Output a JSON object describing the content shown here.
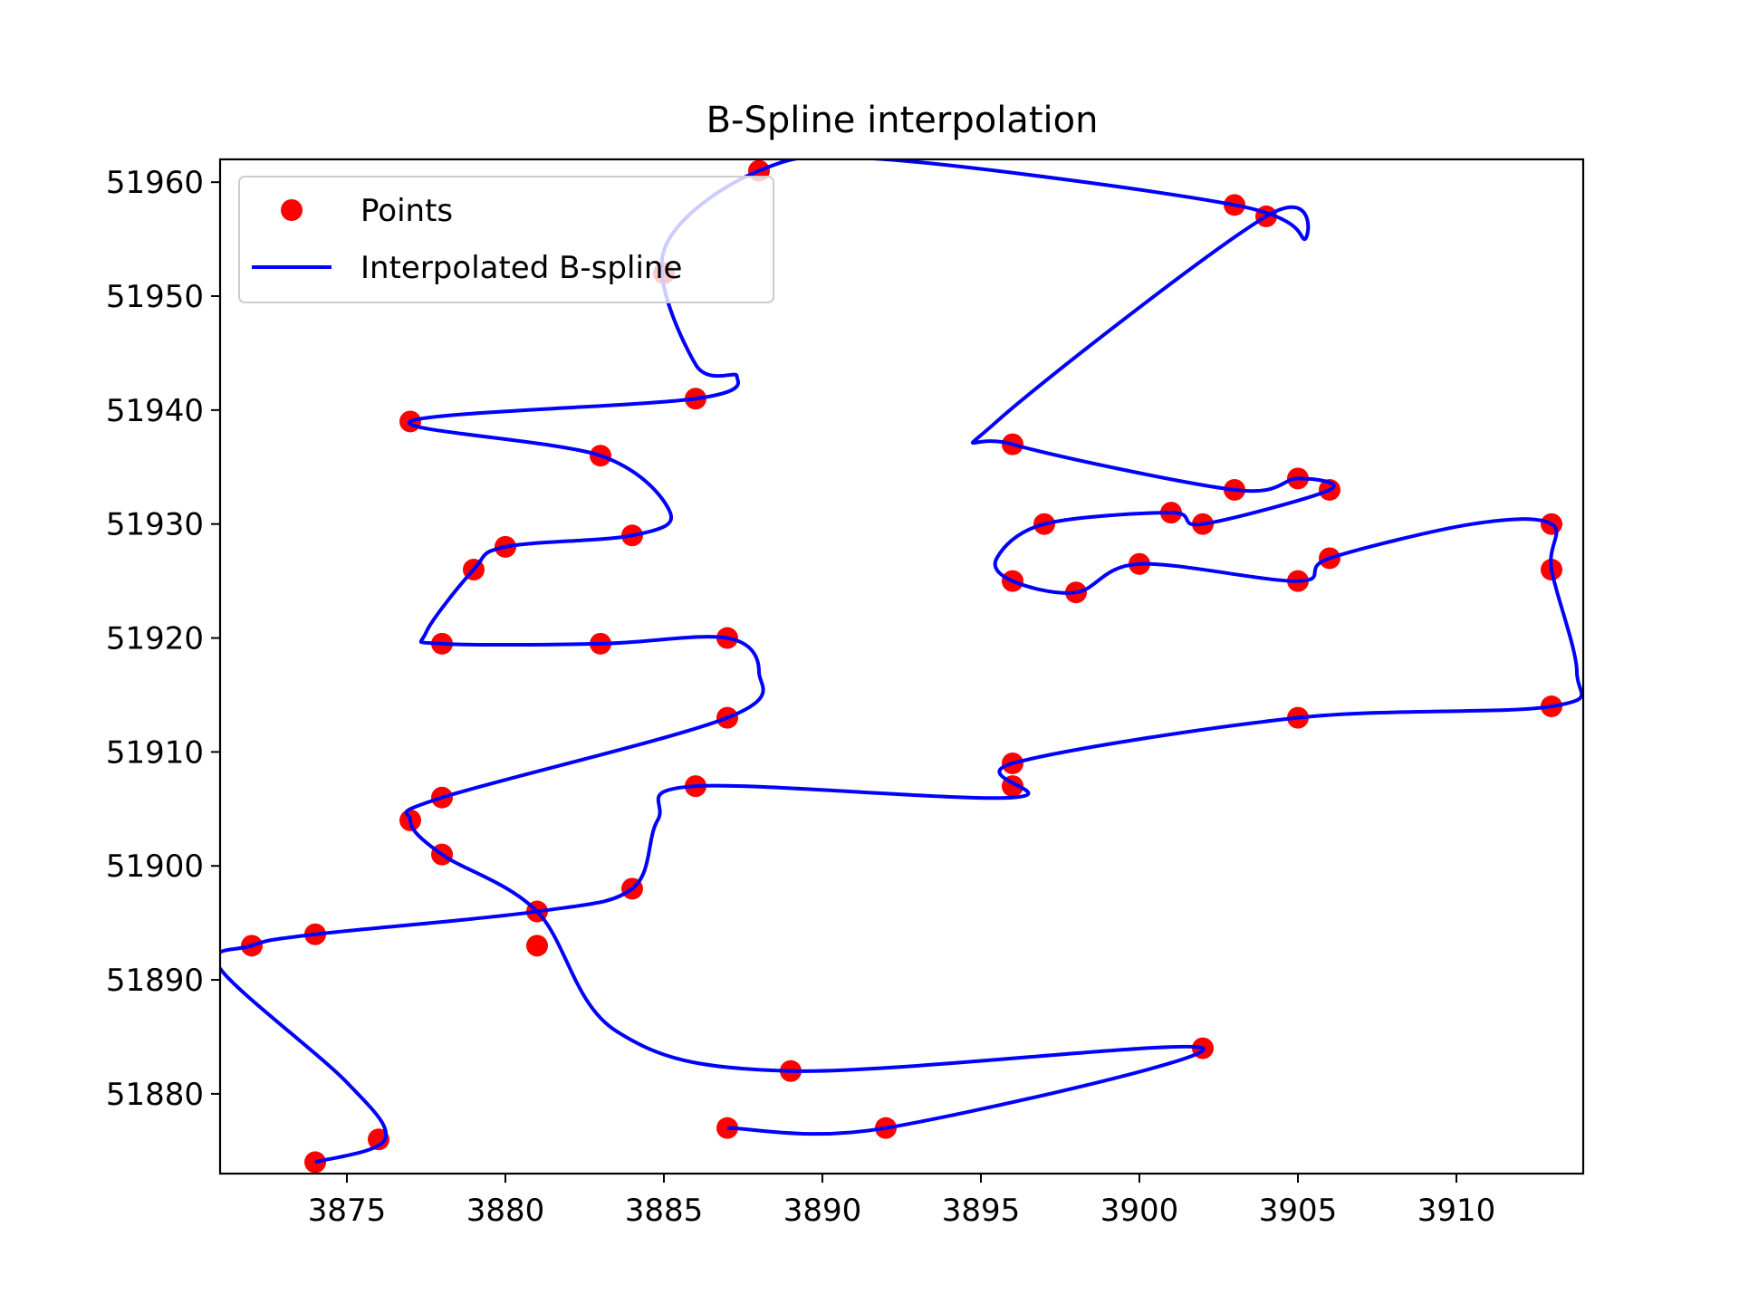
{
  "chart_data": {
    "type": "scatter",
    "title": "B-Spline interpolation",
    "xlabel": "",
    "ylabel": "",
    "xlim": [
      3871.0,
      3914.0
    ],
    "ylim": [
      51873.0,
      51962.0
    ],
    "x_ticks": [
      3875,
      3880,
      3885,
      3890,
      3895,
      3900,
      3905,
      3910
    ],
    "y_ticks": [
      51880,
      51890,
      51900,
      51910,
      51920,
      51930,
      51940,
      51950,
      51960
    ],
    "grid": false,
    "legend_position": "upper-left",
    "series": [
      {
        "name": "Points",
        "kind": "markers",
        "color": "#ff0000",
        "x": [
          3874,
          3876,
          3872,
          3874,
          3881,
          3884,
          3886,
          3896,
          3896,
          3905,
          3913,
          3913,
          3913,
          3906,
          3905,
          3900,
          3898,
          3896,
          3897,
          3901,
          3902,
          3906,
          3905,
          3903,
          3896,
          3904,
          3903,
          3888,
          3885,
          3886,
          3877,
          3883,
          3884,
          3880,
          3879,
          3878,
          3883,
          3887,
          3887,
          3878,
          3877,
          3878,
          3881,
          3889,
          3902,
          3892,
          3887
        ],
        "y": [
          51874,
          51876,
          51893,
          51894,
          51896,
          51898,
          51907,
          51907,
          51909,
          51913,
          51914,
          51926,
          51930,
          51927,
          51925,
          51926.5,
          51924,
          51925,
          51930,
          51931,
          51930,
          51933,
          51934,
          51933,
          51937,
          51957,
          51958,
          51961,
          51952,
          51941,
          51939,
          51936,
          51929,
          51928,
          51926,
          51919.5,
          51919.5,
          51920,
          51913,
          51906,
          51904,
          51901,
          51893,
          51882,
          51884,
          51877,
          51877
        ]
      },
      {
        "name": "Interpolated B-spline",
        "kind": "line",
        "color": "#0000ff",
        "x": [
          3874,
          3876.2,
          3875.0,
          3871.0,
          3872,
          3874,
          3881,
          3884,
          3884.8,
          3886,
          3896,
          3896,
          3905,
          3913,
          3913.8,
          3913,
          3913,
          3910.5,
          3906,
          3905,
          3900,
          3898,
          3896,
          3895.5,
          3897,
          3901,
          3902,
          3906,
          3905,
          3903,
          3896,
          3895.5,
          3904,
          3905.2,
          3903,
          3892,
          3888,
          3885,
          3886,
          3887.3,
          3886,
          3877,
          3883,
          3885.2,
          3884,
          3880,
          3879,
          3877.5,
          3878,
          3883,
          3887,
          3888.0,
          3887,
          3878,
          3877,
          3878,
          3881,
          3883.5,
          3889,
          3902,
          3892,
          3887
        ],
        "y": [
          51874,
          51876,
          51881,
          51891,
          51893,
          51894,
          51896,
          51898,
          51904,
          51907,
          51906,
          51909,
          51913,
          51914,
          51917,
          51926,
          51930,
          51930,
          51927,
          51925,
          51926.5,
          51924,
          51925,
          51927,
          51930,
          51931,
          51930,
          51933,
          51934,
          51933,
          51937,
          51939,
          51957,
          51955,
          51958,
          51962,
          51961,
          51954,
          51944,
          51943,
          51941,
          51939,
          51936,
          51931,
          51929,
          51928,
          51926,
          51920.5,
          51919.5,
          51919.5,
          51920,
          51917,
          51913,
          51906,
          51904,
          51901,
          51896,
          51885.5,
          51882,
          51884,
          51877,
          51877
        ]
      }
    ]
  }
}
